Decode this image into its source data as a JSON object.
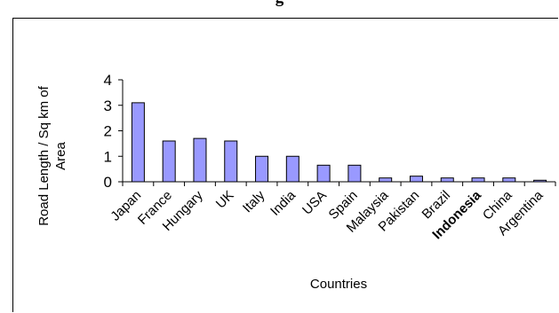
{
  "page": {
    "title": "g"
  },
  "chart_data": {
    "type": "bar",
    "title": "",
    "categories": [
      "Japan",
      "France",
      "Hungary",
      "UK",
      "Italy",
      "India",
      "USA",
      "Spain",
      "Malaysia",
      "Pakistan",
      "Brazil",
      "Indonesia",
      "China",
      "Argentina"
    ],
    "values": [
      3.1,
      1.6,
      1.7,
      1.6,
      1.0,
      1.0,
      0.65,
      0.65,
      0.15,
      0.22,
      0.15,
      0.15,
      0.15,
      0.06
    ],
    "ylabel_lines": [
      "Road Length / Sq km of",
      "Area"
    ],
    "xlabel": "Countries",
    "ylim": [
      0,
      4
    ],
    "yticks": [
      "0",
      "1",
      "2",
      "3",
      "4"
    ],
    "grid": false,
    "legend": "none",
    "bar_color": "#9999ff",
    "bar_stroke": "#000000"
  }
}
